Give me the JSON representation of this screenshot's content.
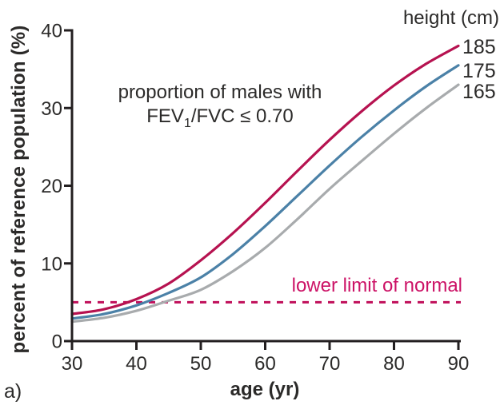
{
  "figure_label": "a)",
  "annotation": {
    "line1": "proportion of males with",
    "line2_pre": "FEV",
    "line2_sub": "1",
    "line2_post": "/FVC ≤ 0.70"
  },
  "legend": {
    "title": "height (cm)"
  },
  "colors": {
    "ink": "#2b2a29",
    "axis": "#231f20",
    "crimson": "#b61250",
    "dash": "#c00f5a",
    "lln_text": "#cc1266",
    "blue": "#4b81a7",
    "gray": "#a8abad"
  },
  "chart_data": {
    "type": "line",
    "title": "proportion of males with FEV1/FVC ≤ 0.70",
    "xlabel": "age (yr)",
    "ylabel": "percent of reference population (%)",
    "xlim": [
      30,
      90
    ],
    "ylim": [
      0,
      40
    ],
    "xticks": [
      30,
      40,
      50,
      60,
      70,
      80,
      90
    ],
    "yticks": [
      0,
      10,
      20,
      30,
      40
    ],
    "grid": false,
    "legend_position": "top-right, labels at line ends",
    "x": [
      30,
      35,
      40,
      45,
      50,
      55,
      60,
      65,
      70,
      75,
      80,
      85,
      90
    ],
    "series": [
      {
        "name": "185",
        "color": "#b61250",
        "values": [
          3.5,
          4.1,
          5.4,
          7.4,
          10.4,
          13.9,
          17.8,
          21.9,
          25.9,
          29.6,
          32.9,
          35.7,
          38.0
        ]
      },
      {
        "name": "175",
        "color": "#4b81a7",
        "values": [
          2.9,
          3.5,
          4.6,
          6.2,
          8.2,
          11.2,
          14.8,
          18.7,
          22.6,
          26.3,
          29.7,
          32.8,
          35.5
        ]
      },
      {
        "name": "165",
        "color": "#a8abad",
        "values": [
          2.5,
          3.0,
          3.9,
          5.2,
          6.6,
          9.0,
          12.0,
          15.7,
          19.6,
          23.2,
          26.7,
          30.0,
          33.0
        ]
      }
    ],
    "reference_line": {
      "value": 5,
      "label": "lower limit of normal",
      "style": "dashed"
    }
  }
}
